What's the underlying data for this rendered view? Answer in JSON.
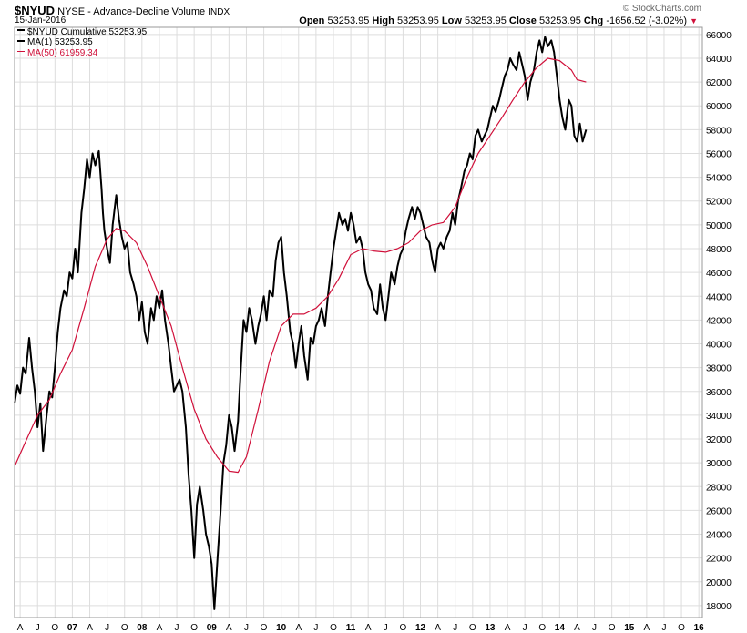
{
  "header": {
    "symbol": "$NYUD",
    "name": "NYSE - Advance-Decline Volume",
    "exchange": "INDX",
    "date": "15-Jan-2016",
    "brand": "© StockCharts.com",
    "open_label": "Open",
    "open": "53253.95",
    "high_label": "High",
    "high": "53253.95",
    "low_label": "Low",
    "low": "53253.95",
    "close_label": "Close",
    "close": "53253.95",
    "chg_label": "Chg",
    "chg": "-1656.52 (-3.02%)",
    "chg_arrow": "▼"
  },
  "legend": {
    "line1": "$NYUD Cumulative 53253.95",
    "line2": "MA(1) 53253.95",
    "line3": "MA(50) 61959.34"
  },
  "colors": {
    "price": "#000000",
    "ma": "#d0103a",
    "grid": "#dddddd",
    "down": "#d0103a"
  },
  "chart_data": {
    "type": "line",
    "xlim": [
      2006.17,
      2016.05
    ],
    "ylim": [
      17000,
      66600
    ],
    "grid": true,
    "legend_position": "top-left",
    "x_ticks": [
      {
        "label": "A",
        "x": 2006.25
      },
      {
        "label": "J",
        "x": 2006.5
      },
      {
        "label": "O",
        "x": 2006.75
      },
      {
        "label": "07",
        "x": 2007.0
      },
      {
        "label": "A",
        "x": 2007.25
      },
      {
        "label": "J",
        "x": 2007.5
      },
      {
        "label": "O",
        "x": 2007.75
      },
      {
        "label": "08",
        "x": 2008.0
      },
      {
        "label": "A",
        "x": 2008.25
      },
      {
        "label": "J",
        "x": 2008.5
      },
      {
        "label": "O",
        "x": 2008.75
      },
      {
        "label": "09",
        "x": 2009.0
      },
      {
        "label": "A",
        "x": 2009.25
      },
      {
        "label": "J",
        "x": 2009.5
      },
      {
        "label": "O",
        "x": 2009.75
      },
      {
        "label": "10",
        "x": 2010.0
      },
      {
        "label": "A",
        "x": 2010.25
      },
      {
        "label": "J",
        "x": 2010.5
      },
      {
        "label": "O",
        "x": 2010.75
      },
      {
        "label": "11",
        "x": 2011.0
      },
      {
        "label": "A",
        "x": 2011.25
      },
      {
        "label": "J",
        "x": 2011.5
      },
      {
        "label": "O",
        "x": 2011.75
      },
      {
        "label": "12",
        "x": 2012.0
      },
      {
        "label": "A",
        "x": 2012.25
      },
      {
        "label": "J",
        "x": 2012.5
      },
      {
        "label": "O",
        "x": 2012.75
      },
      {
        "label": "13",
        "x": 2013.0
      },
      {
        "label": "A",
        "x": 2013.25
      },
      {
        "label": "J",
        "x": 2013.5
      },
      {
        "label": "O",
        "x": 2013.75
      },
      {
        "label": "14",
        "x": 2014.0
      },
      {
        "label": "A",
        "x": 2014.25
      },
      {
        "label": "J",
        "x": 2014.5
      },
      {
        "label": "O",
        "x": 2014.75
      },
      {
        "label": "15",
        "x": 2015.0
      },
      {
        "label": "A",
        "x": 2015.25
      },
      {
        "label": "J",
        "x": 2015.5
      },
      {
        "label": "O",
        "x": 2015.75
      },
      {
        "label": "16",
        "x": 2016.0
      }
    ],
    "y_ticks": [
      18000,
      20000,
      22000,
      24000,
      26000,
      28000,
      30000,
      32000,
      34000,
      36000,
      38000,
      40000,
      42000,
      44000,
      46000,
      48000,
      50000,
      52000,
      54000,
      56000,
      58000,
      60000,
      62000,
      64000,
      66000
    ],
    "series": [
      {
        "name": "$NYUD Cumulative",
        "points": [
          [
            2006.17,
            35000
          ],
          [
            2006.21,
            36500
          ],
          [
            2006.25,
            35800
          ],
          [
            2006.29,
            38000
          ],
          [
            2006.33,
            37500
          ],
          [
            2006.38,
            40500
          ],
          [
            2006.42,
            38000
          ],
          [
            2006.46,
            36000
          ],
          [
            2006.5,
            33000
          ],
          [
            2006.54,
            35000
          ],
          [
            2006.58,
            31000
          ],
          [
            2006.63,
            34000
          ],
          [
            2006.67,
            36000
          ],
          [
            2006.71,
            35500
          ],
          [
            2006.75,
            38000
          ],
          [
            2006.79,
            41000
          ],
          [
            2006.83,
            43000
          ],
          [
            2006.88,
            44500
          ],
          [
            2006.92,
            44000
          ],
          [
            2006.96,
            46000
          ],
          [
            2007.0,
            45500
          ],
          [
            2007.04,
            48000
          ],
          [
            2007.08,
            46000
          ],
          [
            2007.13,
            51000
          ],
          [
            2007.17,
            53000
          ],
          [
            2007.21,
            55500
          ],
          [
            2007.25,
            54000
          ],
          [
            2007.29,
            56000
          ],
          [
            2007.33,
            55000
          ],
          [
            2007.38,
            56200
          ],
          [
            2007.42,
            53000
          ],
          [
            2007.44,
            51000
          ],
          [
            2007.46,
            49500
          ],
          [
            2007.5,
            48000
          ],
          [
            2007.54,
            46800
          ],
          [
            2007.58,
            50000
          ],
          [
            2007.63,
            52500
          ],
          [
            2007.67,
            50500
          ],
          [
            2007.71,
            49000
          ],
          [
            2007.75,
            48000
          ],
          [
            2007.79,
            48500
          ],
          [
            2007.83,
            46000
          ],
          [
            2007.88,
            45000
          ],
          [
            2007.92,
            44000
          ],
          [
            2007.96,
            42000
          ],
          [
            2008.0,
            43500
          ],
          [
            2008.04,
            41000
          ],
          [
            2008.08,
            40000
          ],
          [
            2008.13,
            43000
          ],
          [
            2008.17,
            42000
          ],
          [
            2008.21,
            44000
          ],
          [
            2008.25,
            43000
          ],
          [
            2008.29,
            44500
          ],
          [
            2008.33,
            42000
          ],
          [
            2008.38,
            40000
          ],
          [
            2008.42,
            38000
          ],
          [
            2008.46,
            36000
          ],
          [
            2008.5,
            36500
          ],
          [
            2008.54,
            37000
          ],
          [
            2008.58,
            36000
          ],
          [
            2008.63,
            33000
          ],
          [
            2008.67,
            29000
          ],
          [
            2008.71,
            26000
          ],
          [
            2008.75,
            22000
          ],
          [
            2008.79,
            26500
          ],
          [
            2008.83,
            28000
          ],
          [
            2008.88,
            26000
          ],
          [
            2008.92,
            24000
          ],
          [
            2008.96,
            23000
          ],
          [
            2009.0,
            21500
          ],
          [
            2009.04,
            17700
          ],
          [
            2009.08,
            21500
          ],
          [
            2009.13,
            26000
          ],
          [
            2009.17,
            30000
          ],
          [
            2009.21,
            31500
          ],
          [
            2009.25,
            34000
          ],
          [
            2009.29,
            33000
          ],
          [
            2009.33,
            31000
          ],
          [
            2009.38,
            33500
          ],
          [
            2009.42,
            38000
          ],
          [
            2009.46,
            42000
          ],
          [
            2009.5,
            41000
          ],
          [
            2009.54,
            43000
          ],
          [
            2009.58,
            42000
          ],
          [
            2009.63,
            40000
          ],
          [
            2009.67,
            41500
          ],
          [
            2009.71,
            42500
          ],
          [
            2009.75,
            44000
          ],
          [
            2009.79,
            42000
          ],
          [
            2009.83,
            44500
          ],
          [
            2009.88,
            44000
          ],
          [
            2009.92,
            47000
          ],
          [
            2009.96,
            48500
          ],
          [
            2010.0,
            49000
          ],
          [
            2010.04,
            46000
          ],
          [
            2010.08,
            44000
          ],
          [
            2010.13,
            41000
          ],
          [
            2010.17,
            40000
          ],
          [
            2010.21,
            38000
          ],
          [
            2010.25,
            40000
          ],
          [
            2010.29,
            41500
          ],
          [
            2010.33,
            39000
          ],
          [
            2010.38,
            37000
          ],
          [
            2010.42,
            40500
          ],
          [
            2010.46,
            40000
          ],
          [
            2010.5,
            41500
          ],
          [
            2010.54,
            42000
          ],
          [
            2010.58,
            43000
          ],
          [
            2010.63,
            41500
          ],
          [
            2010.67,
            44000
          ],
          [
            2010.71,
            46000
          ],
          [
            2010.75,
            48000
          ],
          [
            2010.79,
            49500
          ],
          [
            2010.83,
            51000
          ],
          [
            2010.88,
            50000
          ],
          [
            2010.92,
            50500
          ],
          [
            2010.96,
            49500
          ],
          [
            2011.0,
            51000
          ],
          [
            2011.04,
            50000
          ],
          [
            2011.08,
            48500
          ],
          [
            2011.13,
            49000
          ],
          [
            2011.17,
            48000
          ],
          [
            2011.21,
            46000
          ],
          [
            2011.25,
            45000
          ],
          [
            2011.29,
            44500
          ],
          [
            2011.33,
            43000
          ],
          [
            2011.38,
            42500
          ],
          [
            2011.42,
            45000
          ],
          [
            2011.46,
            43000
          ],
          [
            2011.5,
            42000
          ],
          [
            2011.54,
            44000
          ],
          [
            2011.58,
            46000
          ],
          [
            2011.63,
            45000
          ],
          [
            2011.67,
            46500
          ],
          [
            2011.71,
            47500
          ],
          [
            2011.75,
            48000
          ],
          [
            2011.79,
            49500
          ],
          [
            2011.83,
            50500
          ],
          [
            2011.88,
            51500
          ],
          [
            2011.92,
            50500
          ],
          [
            2011.96,
            51500
          ],
          [
            2012.0,
            51000
          ],
          [
            2012.04,
            50000
          ],
          [
            2012.08,
            49000
          ],
          [
            2012.13,
            48500
          ],
          [
            2012.17,
            47000
          ],
          [
            2012.21,
            46000
          ],
          [
            2012.25,
            48000
          ],
          [
            2012.29,
            48500
          ],
          [
            2012.33,
            48000
          ],
          [
            2012.38,
            49000
          ],
          [
            2012.42,
            49500
          ],
          [
            2012.46,
            51000
          ],
          [
            2012.5,
            50000
          ],
          [
            2012.54,
            52000
          ],
          [
            2012.58,
            53000
          ],
          [
            2012.63,
            54500
          ],
          [
            2012.67,
            55000
          ],
          [
            2012.71,
            56000
          ],
          [
            2012.75,
            55500
          ],
          [
            2012.79,
            57500
          ],
          [
            2012.83,
            58000
          ],
          [
            2012.88,
            57000
          ],
          [
            2012.92,
            57500
          ],
          [
            2012.96,
            58000
          ],
          [
            2013.0,
            59000
          ],
          [
            2013.04,
            60000
          ],
          [
            2013.08,
            59500
          ],
          [
            2013.13,
            60500
          ],
          [
            2013.17,
            61500
          ],
          [
            2013.21,
            62500
          ],
          [
            2013.25,
            63000
          ],
          [
            2013.29,
            64000
          ],
          [
            2013.33,
            63500
          ],
          [
            2013.38,
            63000
          ],
          [
            2013.42,
            64500
          ],
          [
            2013.46,
            63500
          ],
          [
            2013.5,
            62500
          ],
          [
            2013.54,
            60500
          ],
          [
            2013.58,
            62000
          ],
          [
            2013.63,
            63000
          ],
          [
            2013.67,
            64500
          ],
          [
            2013.71,
            65500
          ],
          [
            2013.75,
            64500
          ],
          [
            2013.79,
            65800
          ],
          [
            2013.83,
            65000
          ],
          [
            2013.88,
            65500
          ],
          [
            2013.92,
            64500
          ],
          [
            2013.96,
            62500
          ],
          [
            2014.0,
            60500
          ],
          [
            2014.04,
            59000
          ],
          [
            2014.08,
            58000
          ],
          [
            2014.13,
            60500
          ],
          [
            2014.17,
            60000
          ],
          [
            2014.21,
            57500
          ],
          [
            2014.25,
            57000
          ],
          [
            2014.29,
            58500
          ],
          [
            2014.33,
            57000
          ],
          [
            2014.38,
            58000
          ]
        ]
      },
      {
        "name": "MA(50)",
        "points": [
          [
            2006.17,
            29700
          ],
          [
            2006.33,
            31800
          ],
          [
            2006.5,
            34000
          ],
          [
            2006.67,
            35300
          ],
          [
            2006.83,
            37500
          ],
          [
            2007.0,
            39500
          ],
          [
            2007.17,
            43000
          ],
          [
            2007.33,
            46500
          ],
          [
            2007.5,
            48800
          ],
          [
            2007.63,
            49700
          ],
          [
            2007.75,
            49500
          ],
          [
            2007.92,
            48500
          ],
          [
            2008.08,
            46500
          ],
          [
            2008.25,
            44000
          ],
          [
            2008.42,
            41500
          ],
          [
            2008.58,
            38000
          ],
          [
            2008.75,
            34500
          ],
          [
            2008.92,
            32000
          ],
          [
            2009.08,
            30500
          ],
          [
            2009.25,
            29300
          ],
          [
            2009.38,
            29200
          ],
          [
            2009.5,
            30500
          ],
          [
            2009.67,
            34500
          ],
          [
            2009.83,
            38500
          ],
          [
            2010.0,
            41500
          ],
          [
            2010.17,
            42500
          ],
          [
            2010.33,
            42500
          ],
          [
            2010.5,
            43000
          ],
          [
            2010.67,
            44000
          ],
          [
            2010.83,
            45500
          ],
          [
            2011.0,
            47500
          ],
          [
            2011.17,
            48000
          ],
          [
            2011.33,
            47800
          ],
          [
            2011.5,
            47700
          ],
          [
            2011.67,
            48000
          ],
          [
            2011.83,
            48500
          ],
          [
            2012.0,
            49500
          ],
          [
            2012.17,
            50000
          ],
          [
            2012.33,
            50200
          ],
          [
            2012.5,
            51500
          ],
          [
            2012.67,
            54000
          ],
          [
            2012.83,
            56000
          ],
          [
            2013.0,
            57500
          ],
          [
            2013.17,
            59000
          ],
          [
            2013.33,
            60500
          ],
          [
            2013.5,
            62000
          ],
          [
            2013.67,
            63200
          ],
          [
            2013.83,
            64000
          ],
          [
            2014.0,
            63800
          ],
          [
            2014.17,
            63000
          ],
          [
            2014.25,
            62200
          ],
          [
            2014.38,
            62000
          ]
        ]
      }
    ]
  }
}
